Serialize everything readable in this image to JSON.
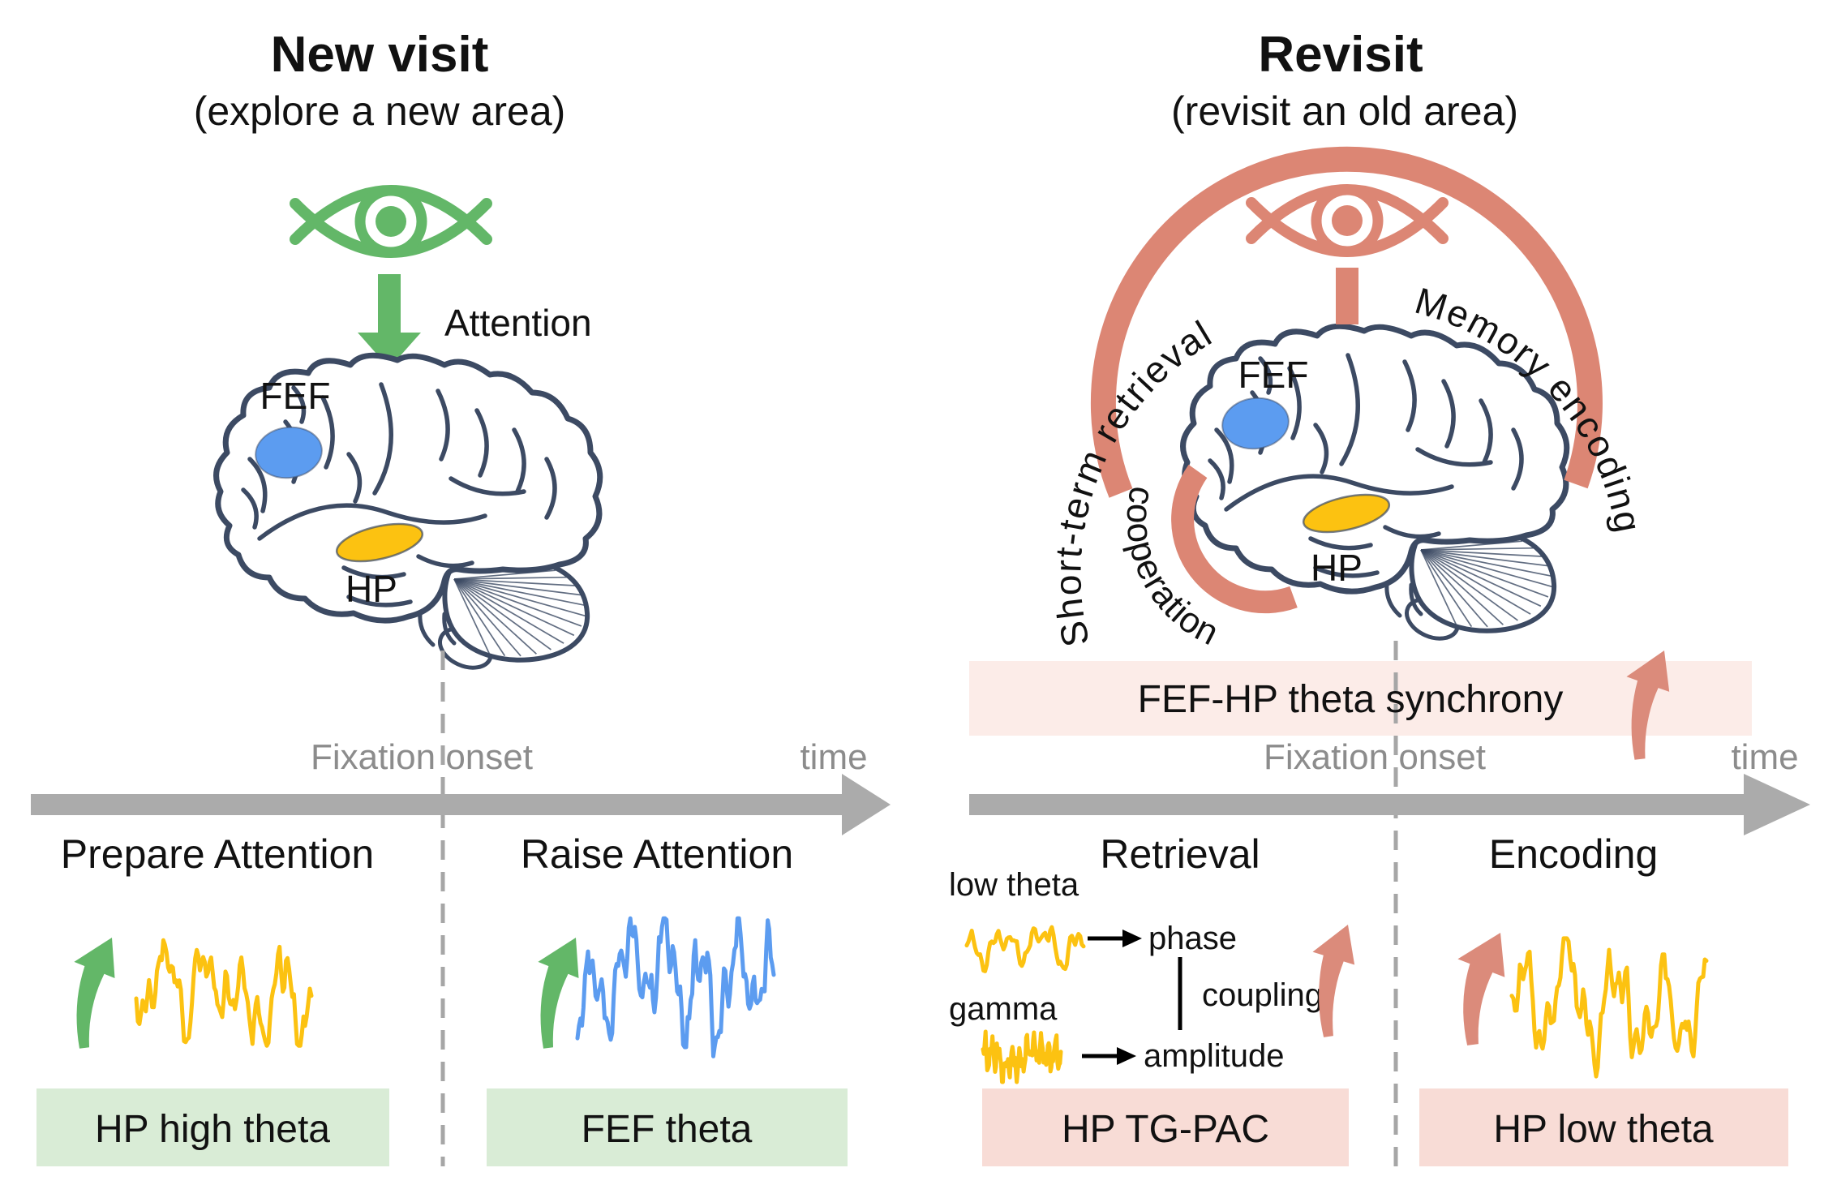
{
  "left": {
    "title": "New visit",
    "subtitle": "(explore a new area)",
    "attention_label": "Attention",
    "fef_label": "FEF",
    "hp_label": "HP",
    "fixation_onset_label": "Fixation onset",
    "time_label": "time",
    "pre_phase_label": "Prepare Attention",
    "post_phase_label": "Raise Attention",
    "pre_box_label": "HP high theta",
    "post_box_label": "FEF theta"
  },
  "right": {
    "title": "Revisit",
    "subtitle": "(revisit an old area)",
    "arc_left_label": "Short-term retrieval",
    "arc_right_label": "Memory encoding",
    "cooperation_label": "cooperation",
    "fef_label": "FEF",
    "hp_label": "HP",
    "synchrony_label": "FEF-HP theta synchrony",
    "fixation_onset_label": "Fixation onset",
    "time_label": "time",
    "pre_phase_label": "Retrieval",
    "post_phase_label": "Encoding",
    "low_theta_label": "low theta",
    "gamma_label": "gamma",
    "phase_label": "phase",
    "amplitude_label": "amplitude",
    "coupling_label": "coupling",
    "pre_box_label": "HP TG-PAC",
    "post_box_label": "HP low theta"
  },
  "icons": {
    "left_eye": "eye-icon",
    "right_eye": "eye-icon",
    "attention_arrow": "down-arrow-icon",
    "increase_arrows": "curved-up-arrow-icon",
    "timeline": "timeline-arrow-icon",
    "mapping_arrows": "right-arrow-icon"
  },
  "colors": {
    "green": "#63b768",
    "green_light": "#d9ecd6",
    "salmon": "#dc8674",
    "salmon_arrow": "#db8b7b",
    "pink_light": "#f8dcd6",
    "pink_band": "#fcece8",
    "yellow": "#fcc211",
    "blue": "#5c9cf0",
    "gray": "#ababab",
    "gray_text": "#8c8c8c",
    "brain": "#3c4a63",
    "black": "#111111"
  }
}
